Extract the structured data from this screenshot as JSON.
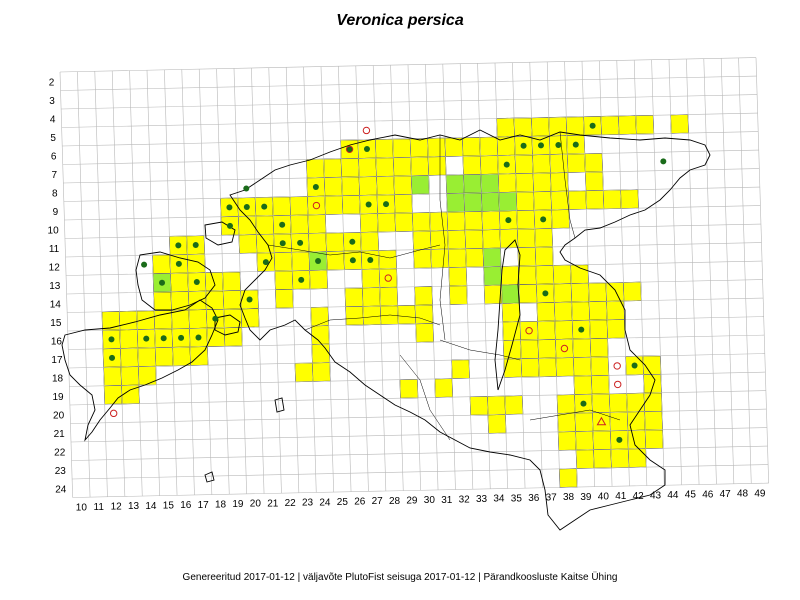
{
  "title": "Veronica persica",
  "footer": "Genereeritud 2017-01-12  |  väljavõte PlutoFist seisuga 2017-01-12  |  Pärandkoosluste Kaitse Ühing",
  "colors": {
    "presence_cell": "#ffff00",
    "highlight_cell": "#99ee33",
    "record_dot": "#1a6b1a",
    "old_record": "#cc2222",
    "grid": "#b8b8b8",
    "coast": "#000000"
  },
  "map": {
    "x_labels": [
      "10",
      "11",
      "12",
      "13",
      "14",
      "15",
      "16",
      "17",
      "18",
      "19",
      "20",
      "21",
      "22",
      "23",
      "24",
      "25",
      "26",
      "27",
      "28",
      "29",
      "30",
      "31",
      "32",
      "33",
      "34",
      "35",
      "36",
      "37",
      "38",
      "39",
      "40",
      "41",
      "42",
      "43",
      "44",
      "45",
      "46",
      "47",
      "48",
      "49"
    ],
    "y_labels": [
      "2",
      "3",
      "4",
      "5",
      "6",
      "7",
      "8",
      "9",
      "10",
      "11",
      "12",
      "13",
      "14",
      "15",
      "16",
      "17",
      "18",
      "19",
      "20",
      "21",
      "22",
      "23",
      "24"
    ],
    "yellow_cells": [
      [
        26,
        6
      ],
      [
        27,
        6
      ],
      [
        28,
        6
      ],
      [
        29,
        6
      ],
      [
        30,
        6
      ],
      [
        31,
        6
      ],
      [
        32,
        6
      ],
      [
        33,
        6
      ],
      [
        34,
        6
      ],
      [
        35,
        5
      ],
      [
        36,
        5
      ],
      [
        37,
        5
      ],
      [
        38,
        5
      ],
      [
        39,
        5
      ],
      [
        40,
        5
      ],
      [
        41,
        5
      ],
      [
        42,
        5
      ],
      [
        43,
        5
      ],
      [
        45,
        5
      ],
      [
        24,
        7
      ],
      [
        25,
        7
      ],
      [
        26,
        7
      ],
      [
        27,
        7
      ],
      [
        28,
        7
      ],
      [
        29,
        7
      ],
      [
        30,
        7
      ],
      [
        31,
        7
      ],
      [
        33,
        7
      ],
      [
        34,
        7
      ],
      [
        35,
        7
      ],
      [
        36,
        7
      ],
      [
        37,
        7
      ],
      [
        38,
        7
      ],
      [
        39,
        7
      ],
      [
        40,
        7
      ],
      [
        35,
        6
      ],
      [
        36,
        6
      ],
      [
        37,
        6
      ],
      [
        38,
        6
      ],
      [
        39,
        6
      ],
      [
        24,
        8
      ],
      [
        25,
        8
      ],
      [
        26,
        8
      ],
      [
        27,
        8
      ],
      [
        28,
        8
      ],
      [
        29,
        8
      ],
      [
        35,
        8
      ],
      [
        36,
        8
      ],
      [
        37,
        8
      ],
      [
        38,
        8
      ],
      [
        40,
        8
      ],
      [
        19,
        9
      ],
      [
        20,
        9
      ],
      [
        21,
        9
      ],
      [
        22,
        9
      ],
      [
        23,
        9
      ],
      [
        24,
        9
      ],
      [
        25,
        9
      ],
      [
        26,
        9
      ],
      [
        27,
        9
      ],
      [
        28,
        9
      ],
      [
        29,
        9
      ],
      [
        35,
        9
      ],
      [
        36,
        9
      ],
      [
        37,
        9
      ],
      [
        38,
        9
      ],
      [
        39,
        9
      ],
      [
        40,
        9
      ],
      [
        41,
        9
      ],
      [
        42,
        9
      ],
      [
        19,
        10
      ],
      [
        20,
        10
      ],
      [
        21,
        10
      ],
      [
        22,
        10
      ],
      [
        23,
        10
      ],
      [
        24,
        10
      ],
      [
        27,
        10
      ],
      [
        28,
        10
      ],
      [
        29,
        10
      ],
      [
        30,
        10
      ],
      [
        31,
        10
      ],
      [
        32,
        10
      ],
      [
        33,
        10
      ],
      [
        34,
        10
      ],
      [
        35,
        10
      ],
      [
        36,
        10
      ],
      [
        37,
        10
      ],
      [
        38,
        10
      ],
      [
        16,
        11
      ],
      [
        17,
        11
      ],
      [
        20,
        11
      ],
      [
        21,
        11
      ],
      [
        22,
        11
      ],
      [
        23,
        11
      ],
      [
        24,
        11
      ],
      [
        25,
        11
      ],
      [
        26,
        11
      ],
      [
        27,
        11
      ],
      [
        30,
        11
      ],
      [
        31,
        11
      ],
      [
        32,
        11
      ],
      [
        33,
        11
      ],
      [
        34,
        11
      ],
      [
        35,
        11
      ],
      [
        36,
        11
      ],
      [
        37,
        11
      ],
      [
        15,
        12
      ],
      [
        16,
        12
      ],
      [
        17,
        12
      ],
      [
        21,
        12
      ],
      [
        22,
        12
      ],
      [
        23,
        12
      ],
      [
        24,
        12
      ],
      [
        25,
        12
      ],
      [
        26,
        12
      ],
      [
        27,
        12
      ],
      [
        28,
        12
      ],
      [
        30,
        12
      ],
      [
        31,
        12
      ],
      [
        32,
        12
      ],
      [
        33,
        12
      ],
      [
        34,
        12
      ],
      [
        36,
        12
      ],
      [
        37,
        12
      ],
      [
        15,
        13
      ],
      [
        16,
        13
      ],
      [
        17,
        13
      ],
      [
        18,
        13
      ],
      [
        19,
        13
      ],
      [
        22,
        13
      ],
      [
        23,
        13
      ],
      [
        24,
        13
      ],
      [
        27,
        13
      ],
      [
        28,
        13
      ],
      [
        32,
        13
      ],
      [
        35,
        13
      ],
      [
        36,
        13
      ],
      [
        37,
        13
      ],
      [
        38,
        13
      ],
      [
        39,
        13
      ],
      [
        15,
        14
      ],
      [
        16,
        14
      ],
      [
        17,
        14
      ],
      [
        18,
        14
      ],
      [
        19,
        14
      ],
      [
        20,
        14
      ],
      [
        22,
        14
      ],
      [
        26,
        14
      ],
      [
        27,
        14
      ],
      [
        28,
        14
      ],
      [
        30,
        14
      ],
      [
        32,
        14
      ],
      [
        34,
        14
      ],
      [
        36,
        14
      ],
      [
        37,
        14
      ],
      [
        38,
        14
      ],
      [
        39,
        14
      ],
      [
        40,
        14
      ],
      [
        41,
        14
      ],
      [
        42,
        14
      ],
      [
        12,
        15
      ],
      [
        13,
        15
      ],
      [
        14,
        15
      ],
      [
        15,
        15
      ],
      [
        16,
        15
      ],
      [
        17,
        15
      ],
      [
        18,
        15
      ],
      [
        19,
        15
      ],
      [
        20,
        15
      ],
      [
        24,
        15
      ],
      [
        26,
        15
      ],
      [
        27,
        15
      ],
      [
        28,
        15
      ],
      [
        29,
        15
      ],
      [
        30,
        15
      ],
      [
        35,
        15
      ],
      [
        37,
        15
      ],
      [
        38,
        15
      ],
      [
        39,
        15
      ],
      [
        40,
        15
      ],
      [
        41,
        15
      ],
      [
        12,
        16
      ],
      [
        13,
        16
      ],
      [
        14,
        16
      ],
      [
        15,
        16
      ],
      [
        16,
        16
      ],
      [
        17,
        16
      ],
      [
        18,
        16
      ],
      [
        19,
        16
      ],
      [
        24,
        16
      ],
      [
        30,
        16
      ],
      [
        35,
        16
      ],
      [
        36,
        16
      ],
      [
        37,
        16
      ],
      [
        38,
        16
      ],
      [
        39,
        16
      ],
      [
        40,
        16
      ],
      [
        41,
        16
      ],
      [
        12,
        17
      ],
      [
        13,
        17
      ],
      [
        14,
        17
      ],
      [
        15,
        17
      ],
      [
        16,
        17
      ],
      [
        17,
        17
      ],
      [
        24,
        17
      ],
      [
        35,
        17
      ],
      [
        36,
        17
      ],
      [
        37,
        17
      ],
      [
        38,
        17
      ],
      [
        39,
        17
      ],
      [
        40,
        17
      ],
      [
        12,
        18
      ],
      [
        13,
        18
      ],
      [
        14,
        18
      ],
      [
        23,
        18
      ],
      [
        24,
        18
      ],
      [
        32,
        18
      ],
      [
        35,
        18
      ],
      [
        36,
        18
      ],
      [
        37,
        18
      ],
      [
        38,
        18
      ],
      [
        39,
        18
      ],
      [
        40,
        18
      ],
      [
        42,
        18
      ],
      [
        43,
        18
      ],
      [
        12,
        19
      ],
      [
        13,
        19
      ],
      [
        29,
        19
      ],
      [
        31,
        19
      ],
      [
        39,
        19
      ],
      [
        40,
        19
      ],
      [
        43,
        19
      ],
      [
        33,
        20
      ],
      [
        34,
        20
      ],
      [
        35,
        20
      ],
      [
        38,
        20
      ],
      [
        39,
        20
      ],
      [
        40,
        20
      ],
      [
        41,
        20
      ],
      [
        42,
        20
      ],
      [
        43,
        20
      ],
      [
        34,
        21
      ],
      [
        38,
        21
      ],
      [
        39,
        21
      ],
      [
        40,
        21
      ],
      [
        41,
        21
      ],
      [
        42,
        21
      ],
      [
        43,
        21
      ],
      [
        38,
        22
      ],
      [
        39,
        22
      ],
      [
        40,
        22
      ],
      [
        41,
        22
      ],
      [
        42,
        22
      ],
      [
        43,
        22
      ],
      [
        39,
        23
      ],
      [
        40,
        23
      ],
      [
        41,
        23
      ],
      [
        42,
        23
      ],
      [
        38,
        24
      ]
    ],
    "green_cells": [
      [
        32,
        8
      ],
      [
        33,
        8
      ],
      [
        34,
        8
      ],
      [
        30,
        8
      ],
      [
        32,
        9
      ],
      [
        33,
        9
      ],
      [
        34,
        9
      ],
      [
        35,
        9
      ],
      [
        24,
        12
      ],
      [
        15,
        13
      ],
      [
        34,
        12
      ],
      [
        34,
        13
      ],
      [
        35,
        14
      ]
    ],
    "dots": [
      [
        40,
        5
      ],
      [
        36,
        6
      ],
      [
        37,
        6
      ],
      [
        38,
        6
      ],
      [
        39,
        6
      ],
      [
        26,
        6
      ],
      [
        27,
        6
      ],
      [
        35,
        7
      ],
      [
        44,
        7
      ],
      [
        20,
        8
      ],
      [
        24,
        8
      ],
      [
        19,
        9
      ],
      [
        20,
        9
      ],
      [
        21,
        9
      ],
      [
        27,
        9
      ],
      [
        28,
        9
      ],
      [
        19,
        10
      ],
      [
        22,
        10
      ],
      [
        35,
        10
      ],
      [
        37,
        10
      ],
      [
        16,
        11
      ],
      [
        17,
        11
      ],
      [
        22,
        11
      ],
      [
        23,
        11
      ],
      [
        26,
        11
      ],
      [
        14,
        12
      ],
      [
        16,
        12
      ],
      [
        21,
        12
      ],
      [
        24,
        12
      ],
      [
        26,
        12
      ],
      [
        27,
        12
      ],
      [
        15,
        13
      ],
      [
        17,
        13
      ],
      [
        23,
        13
      ],
      [
        37,
        14
      ],
      [
        20,
        14
      ],
      [
        18,
        15
      ],
      [
        12,
        16
      ],
      [
        14,
        16
      ],
      [
        15,
        16
      ],
      [
        16,
        16
      ],
      [
        17,
        16
      ],
      [
        39,
        16
      ],
      [
        12,
        17
      ],
      [
        42,
        18
      ],
      [
        39,
        20
      ],
      [
        41,
        22
      ]
    ],
    "old_records": [
      [
        26,
        6
      ],
      [
        27,
        5
      ],
      [
        24,
        9
      ],
      [
        28,
        13
      ],
      [
        36,
        16
      ],
      [
        38,
        17
      ],
      [
        41,
        18
      ],
      [
        41,
        19
      ],
      [
        12,
        20
      ]
    ],
    "triangles": [
      [
        40,
        21
      ]
    ]
  }
}
